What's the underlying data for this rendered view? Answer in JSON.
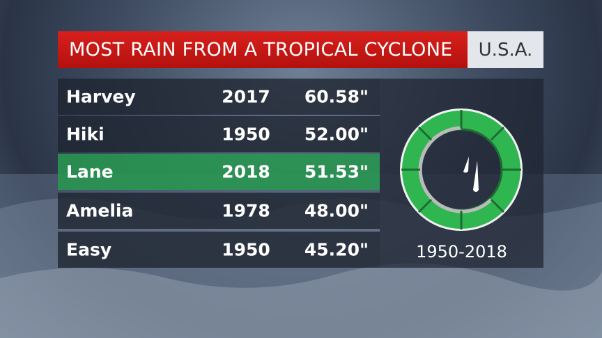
{
  "header": {
    "title": "MOST RAIN FROM A TROPICAL CYCLONE",
    "region": "U.S.A."
  },
  "table": {
    "rows": [
      [
        "Harvey",
        "2017",
        "60.58\""
      ],
      [
        "Hiki",
        "1950",
        "52.00\""
      ],
      [
        "Lane",
        "2018",
        "51.53\""
      ],
      [
        "Amelia",
        "1978",
        "48.00\""
      ],
      [
        "Easy",
        "1950",
        "45.20\""
      ]
    ]
  },
  "footer": {
    "range": "1950-2018"
  }
}
